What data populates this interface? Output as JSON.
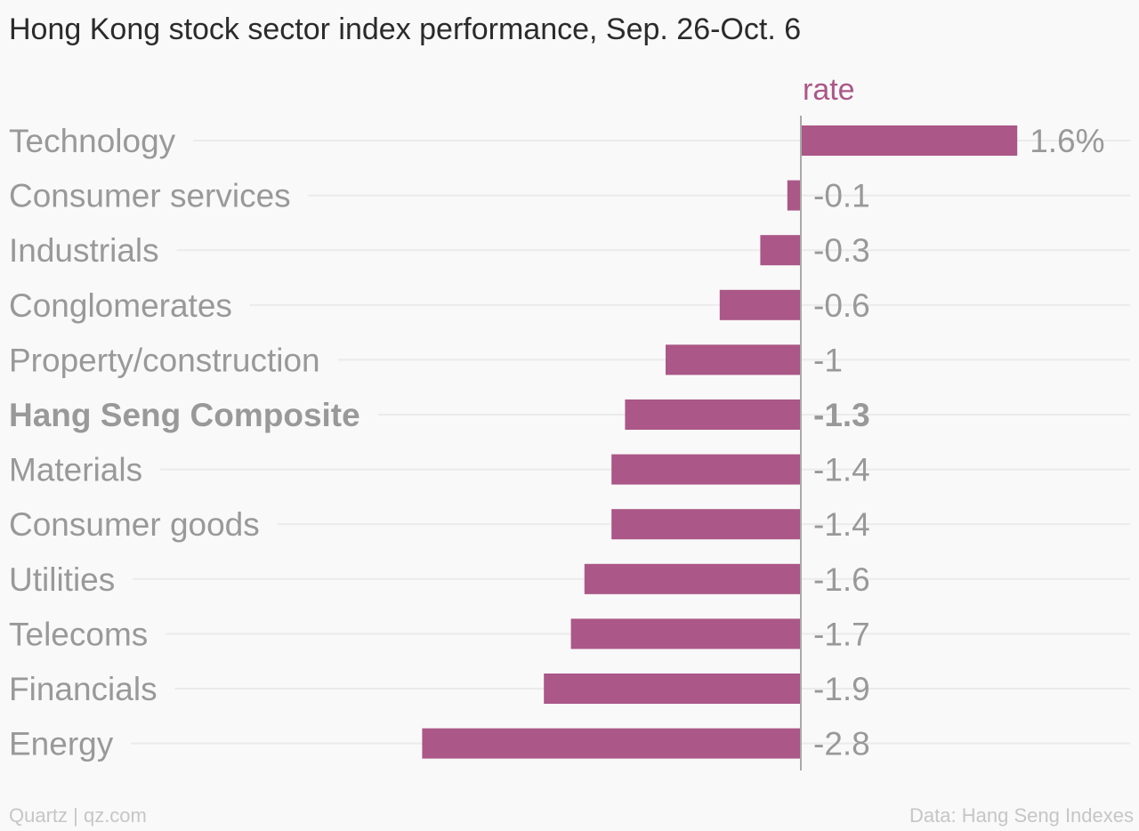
{
  "title": "Hong Kong stock sector index performance, Sep. 26-Oct. 6",
  "credit": "Quartz | qz.com",
  "source": "Data: Hang Seng Indexes",
  "colors": {
    "bar": "#ab5787",
    "axis_label": "#ab5787",
    "category_text": "#999999",
    "value_text": "#999999",
    "gridline": "#ebebeb",
    "zero_line": "#a9a9a9"
  },
  "chart_data": {
    "type": "bar",
    "orientation": "horizontal",
    "title": "Hong Kong stock sector index performance, Sep. 26-Oct. 6",
    "series_label": "rate",
    "categories": [
      "Technology",
      "Consumer services",
      "Industrials",
      "Conglomerates",
      "Property/construction",
      "Hang Seng Composite",
      "Materials",
      "Consumer goods",
      "Utilities",
      "Telecoms",
      "Financials",
      "Energy"
    ],
    "values": [
      1.6,
      -0.1,
      -0.3,
      -0.6,
      -1,
      -1.3,
      -1.4,
      -1.4,
      -1.6,
      -1.7,
      -1.9,
      -2.8
    ],
    "value_labels": [
      "1.6%",
      "-0.1",
      "-0.3",
      "-0.6",
      "-1",
      "-1.3",
      "-1.4",
      "-1.4",
      "-1.6",
      "-1.7",
      "-1.9",
      "-2.8"
    ],
    "highlighted": [
      "Hang Seng Composite"
    ],
    "xlim": [
      -2.8,
      1.6
    ],
    "grid": true,
    "legend": "none"
  }
}
